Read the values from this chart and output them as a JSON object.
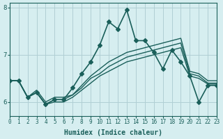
{
  "xlabel": "Humidex (Indice chaleur)",
  "ylabel": "",
  "bg_color": "#d6eef0",
  "grid_color": "#b0cfd4",
  "line_color": "#1a5f5a",
  "xlim": [
    0,
    23
  ],
  "ylim": [
    5.7,
    8.1
  ],
  "yticks": [
    6,
    7,
    8
  ],
  "xticks": [
    0,
    1,
    2,
    3,
    4,
    5,
    6,
    7,
    8,
    9,
    10,
    11,
    12,
    13,
    14,
    15,
    16,
    17,
    18,
    19,
    20,
    21,
    22,
    23
  ],
  "lines": [
    {
      "x": [
        0,
        1,
        2,
        3,
        4,
        5,
        6,
        7,
        8,
        9,
        10,
        11,
        12,
        13,
        14,
        15,
        16,
        17,
        18,
        19,
        20,
        21,
        22,
        23
      ],
      "y": [
        6.45,
        6.45,
        6.1,
        6.2,
        5.95,
        6.05,
        6.05,
        6.3,
        6.6,
        6.85,
        7.2,
        7.7,
        7.55,
        7.95,
        7.3,
        7.3,
        7.05,
        6.7,
        7.1,
        6.85,
        6.55,
        6.0,
        6.35,
        6.35
      ],
      "marker": "D",
      "markersize": 3,
      "linewidth": 1.2
    },
    {
      "x": [
        0,
        1,
        2,
        3,
        4,
        5,
        6,
        7,
        8,
        9,
        10,
        11,
        12,
        13,
        14,
        15,
        16,
        17,
        18,
        19,
        20,
        21,
        22,
        23
      ],
      "y": [
        6.45,
        6.45,
        6.1,
        6.25,
        6.0,
        6.1,
        6.1,
        6.15,
        6.35,
        6.55,
        6.7,
        6.85,
        6.95,
        7.05,
        7.1,
        7.15,
        7.2,
        7.25,
        7.3,
        7.35,
        6.65,
        6.6,
        6.45,
        6.45
      ],
      "marker": null,
      "markersize": 0,
      "linewidth": 1.0
    },
    {
      "x": [
        0,
        1,
        2,
        3,
        4,
        5,
        6,
        7,
        8,
        9,
        10,
        11,
        12,
        13,
        14,
        15,
        16,
        17,
        18,
        19,
        20,
        21,
        22,
        23
      ],
      "y": [
        6.45,
        6.45,
        6.1,
        6.2,
        5.95,
        6.05,
        6.05,
        6.15,
        6.3,
        6.5,
        6.6,
        6.75,
        6.85,
        6.95,
        7.0,
        7.05,
        7.1,
        7.15,
        7.2,
        7.25,
        6.6,
        6.55,
        6.4,
        6.4
      ],
      "marker": null,
      "markersize": 0,
      "linewidth": 1.0
    },
    {
      "x": [
        0,
        1,
        2,
        3,
        4,
        5,
        6,
        7,
        8,
        9,
        10,
        11,
        12,
        13,
        14,
        15,
        16,
        17,
        18,
        19,
        20,
        21,
        22,
        23
      ],
      "y": [
        6.45,
        6.45,
        6.1,
        6.2,
        5.95,
        6.0,
        6.0,
        6.1,
        6.25,
        6.4,
        6.55,
        6.65,
        6.75,
        6.85,
        6.9,
        6.95,
        7.0,
        7.05,
        7.1,
        7.15,
        6.55,
        6.5,
        6.38,
        6.38
      ],
      "marker": null,
      "markersize": 0,
      "linewidth": 1.0
    }
  ]
}
